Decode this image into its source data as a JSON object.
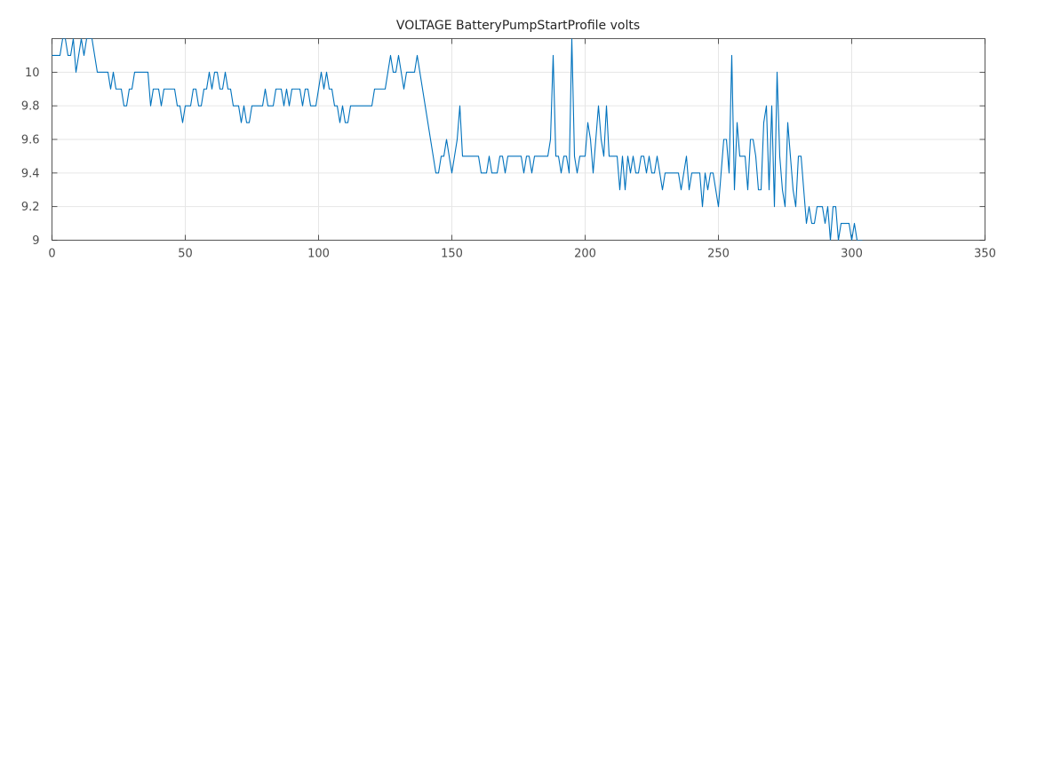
{
  "chart_data": {
    "type": "line",
    "title": "VOLTAGE BatteryPumpStartProfile volts",
    "xlabel": "",
    "ylabel": "",
    "xlim": [
      0,
      350
    ],
    "ylim": [
      9,
      10.2
    ],
    "x_ticks": [
      0,
      50,
      100,
      150,
      200,
      250,
      300,
      350
    ],
    "y_ticks": [
      9,
      9.2,
      9.4,
      9.6,
      9.8,
      10
    ],
    "x_tick_labels": [
      "0",
      "50",
      "100",
      "150",
      "200",
      "250",
      "300",
      "350"
    ],
    "y_tick_labels": [
      "9",
      "9.2",
      "9.4",
      "9.6",
      "9.8",
      "10"
    ],
    "grid": true,
    "series": [
      {
        "color": "#0072bd",
        "points": [
          [
            0,
            10.1
          ],
          [
            1,
            10.1
          ],
          [
            2,
            10.1
          ],
          [
            3,
            10.1
          ],
          [
            4,
            10.2
          ],
          [
            5,
            10.2
          ],
          [
            6,
            10.1
          ],
          [
            7,
            10.1
          ],
          [
            8,
            10.2
          ],
          [
            9,
            10.0
          ],
          [
            10,
            10.1
          ],
          [
            11,
            10.2
          ],
          [
            12,
            10.1
          ],
          [
            13,
            10.2
          ],
          [
            14,
            10.2
          ],
          [
            15,
            10.2
          ],
          [
            16,
            10.1
          ],
          [
            17,
            10.0
          ],
          [
            18,
            10.0
          ],
          [
            19,
            10.0
          ],
          [
            20,
            10.0
          ],
          [
            21,
            10.0
          ],
          [
            22,
            9.9
          ],
          [
            23,
            10.0
          ],
          [
            24,
            9.9
          ],
          [
            25,
            9.9
          ],
          [
            26,
            9.9
          ],
          [
            27,
            9.8
          ],
          [
            28,
            9.8
          ],
          [
            29,
            9.9
          ],
          [
            30,
            9.9
          ],
          [
            31,
            10.0
          ],
          [
            32,
            10.0
          ],
          [
            33,
            10.0
          ],
          [
            34,
            10.0
          ],
          [
            35,
            10.0
          ],
          [
            36,
            10.0
          ],
          [
            37,
            9.8
          ],
          [
            38,
            9.9
          ],
          [
            39,
            9.9
          ],
          [
            40,
            9.9
          ],
          [
            41,
            9.8
          ],
          [
            42,
            9.9
          ],
          [
            43,
            9.9
          ],
          [
            44,
            9.9
          ],
          [
            45,
            9.9
          ],
          [
            46,
            9.9
          ],
          [
            47,
            9.8
          ],
          [
            48,
            9.8
          ],
          [
            49,
            9.7
          ],
          [
            50,
            9.8
          ],
          [
            51,
            9.8
          ],
          [
            52,
            9.8
          ],
          [
            53,
            9.9
          ],
          [
            54,
            9.9
          ],
          [
            55,
            9.8
          ],
          [
            56,
            9.8
          ],
          [
            57,
            9.9
          ],
          [
            58,
            9.9
          ],
          [
            59,
            10.0
          ],
          [
            60,
            9.9
          ],
          [
            61,
            10.0
          ],
          [
            62,
            10.0
          ],
          [
            63,
            9.9
          ],
          [
            64,
            9.9
          ],
          [
            65,
            10.0
          ],
          [
            66,
            9.9
          ],
          [
            67,
            9.9
          ],
          [
            68,
            9.8
          ],
          [
            69,
            9.8
          ],
          [
            70,
            9.8
          ],
          [
            71,
            9.7
          ],
          [
            72,
            9.8
          ],
          [
            73,
            9.7
          ],
          [
            74,
            9.7
          ],
          [
            75,
            9.8
          ],
          [
            76,
            9.8
          ],
          [
            77,
            9.8
          ],
          [
            78,
            9.8
          ],
          [
            79,
            9.8
          ],
          [
            80,
            9.9
          ],
          [
            81,
            9.8
          ],
          [
            82,
            9.8
          ],
          [
            83,
            9.8
          ],
          [
            84,
            9.9
          ],
          [
            85,
            9.9
          ],
          [
            86,
            9.9
          ],
          [
            87,
            9.8
          ],
          [
            88,
            9.9
          ],
          [
            89,
            9.8
          ],
          [
            90,
            9.9
          ],
          [
            91,
            9.9
          ],
          [
            92,
            9.9
          ],
          [
            93,
            9.9
          ],
          [
            94,
            9.8
          ],
          [
            95,
            9.9
          ],
          [
            96,
            9.9
          ],
          [
            97,
            9.8
          ],
          [
            98,
            9.8
          ],
          [
            99,
            9.8
          ],
          [
            100,
            9.9
          ],
          [
            101,
            10.0
          ],
          [
            102,
            9.9
          ],
          [
            103,
            10.0
          ],
          [
            104,
            9.9
          ],
          [
            105,
            9.9
          ],
          [
            106,
            9.8
          ],
          [
            107,
            9.8
          ],
          [
            108,
            9.7
          ],
          [
            109,
            9.8
          ],
          [
            110,
            9.7
          ],
          [
            111,
            9.7
          ],
          [
            112,
            9.8
          ],
          [
            113,
            9.8
          ],
          [
            114,
            9.8
          ],
          [
            115,
            9.8
          ],
          [
            116,
            9.8
          ],
          [
            117,
            9.8
          ],
          [
            118,
            9.8
          ],
          [
            119,
            9.8
          ],
          [
            120,
            9.8
          ],
          [
            121,
            9.9
          ],
          [
            122,
            9.9
          ],
          [
            123,
            9.9
          ],
          [
            124,
            9.9
          ],
          [
            125,
            9.9
          ],
          [
            126,
            10.0
          ],
          [
            127,
            10.1
          ],
          [
            128,
            10.0
          ],
          [
            129,
            10.0
          ],
          [
            130,
            10.1
          ],
          [
            131,
            10.0
          ],
          [
            132,
            9.9
          ],
          [
            133,
            10.0
          ],
          [
            134,
            10.0
          ],
          [
            135,
            10.0
          ],
          [
            136,
            10.0
          ],
          [
            137,
            10.1
          ],
          [
            138,
            10.0
          ],
          [
            144,
            9.4
          ],
          [
            145,
            9.4
          ],
          [
            146,
            9.5
          ],
          [
            147,
            9.5
          ],
          [
            148,
            9.6
          ],
          [
            149,
            9.5
          ],
          [
            150,
            9.4
          ],
          [
            151,
            9.5
          ],
          [
            152,
            9.6
          ],
          [
            153,
            9.8
          ],
          [
            154,
            9.5
          ],
          [
            155,
            9.5
          ],
          [
            156,
            9.5
          ],
          [
            157,
            9.5
          ],
          [
            158,
            9.5
          ],
          [
            159,
            9.5
          ],
          [
            160,
            9.5
          ],
          [
            161,
            9.4
          ],
          [
            162,
            9.4
          ],
          [
            163,
            9.4
          ],
          [
            164,
            9.5
          ],
          [
            165,
            9.4
          ],
          [
            166,
            9.4
          ],
          [
            167,
            9.4
          ],
          [
            168,
            9.5
          ],
          [
            169,
            9.5
          ],
          [
            170,
            9.4
          ],
          [
            171,
            9.5
          ],
          [
            172,
            9.5
          ],
          [
            173,
            9.5
          ],
          [
            174,
            9.5
          ],
          [
            175,
            9.5
          ],
          [
            176,
            9.5
          ],
          [
            177,
            9.4
          ],
          [
            178,
            9.5
          ],
          [
            179,
            9.5
          ],
          [
            180,
            9.4
          ],
          [
            181,
            9.5
          ],
          [
            182,
            9.5
          ],
          [
            183,
            9.5
          ],
          [
            184,
            9.5
          ],
          [
            185,
            9.5
          ],
          [
            186,
            9.5
          ],
          [
            187,
            9.6
          ],
          [
            188,
            10.1
          ],
          [
            189,
            9.5
          ],
          [
            190,
            9.5
          ],
          [
            191,
            9.4
          ],
          [
            192,
            9.5
          ],
          [
            193,
            9.5
          ],
          [
            194,
            9.4
          ],
          [
            195,
            10.2
          ],
          [
            196,
            9.5
          ],
          [
            197,
            9.4
          ],
          [
            198,
            9.5
          ],
          [
            199,
            9.5
          ],
          [
            200,
            9.5
          ],
          [
            201,
            9.7
          ],
          [
            202,
            9.6
          ],
          [
            203,
            9.4
          ],
          [
            204,
            9.6
          ],
          [
            205,
            9.8
          ],
          [
            206,
            9.6
          ],
          [
            207,
            9.5
          ],
          [
            208,
            9.8
          ],
          [
            209,
            9.5
          ],
          [
            210,
            9.5
          ],
          [
            211,
            9.5
          ],
          [
            212,
            9.5
          ],
          [
            213,
            9.3
          ],
          [
            214,
            9.5
          ],
          [
            215,
            9.3
          ],
          [
            216,
            9.5
          ],
          [
            217,
            9.4
          ],
          [
            218,
            9.5
          ],
          [
            219,
            9.4
          ],
          [
            220,
            9.4
          ],
          [
            221,
            9.5
          ],
          [
            222,
            9.5
          ],
          [
            223,
            9.4
          ],
          [
            224,
            9.5
          ],
          [
            225,
            9.4
          ],
          [
            226,
            9.4
          ],
          [
            227,
            9.5
          ],
          [
            228,
            9.4
          ],
          [
            229,
            9.3
          ],
          [
            230,
            9.4
          ],
          [
            231,
            9.4
          ],
          [
            232,
            9.4
          ],
          [
            233,
            9.4
          ],
          [
            234,
            9.4
          ],
          [
            235,
            9.4
          ],
          [
            236,
            9.3
          ],
          [
            237,
            9.4
          ],
          [
            238,
            9.5
          ],
          [
            239,
            9.3
          ],
          [
            240,
            9.4
          ],
          [
            241,
            9.4
          ],
          [
            242,
            9.4
          ],
          [
            243,
            9.4
          ],
          [
            244,
            9.2
          ],
          [
            245,
            9.4
          ],
          [
            246,
            9.3
          ],
          [
            247,
            9.4
          ],
          [
            248,
            9.4
          ],
          [
            249,
            9.3
          ],
          [
            250,
            9.2
          ],
          [
            251,
            9.4
          ],
          [
            252,
            9.6
          ],
          [
            253,
            9.6
          ],
          [
            254,
            9.4
          ],
          [
            255,
            10.1
          ],
          [
            256,
            9.3
          ],
          [
            257,
            9.7
          ],
          [
            258,
            9.5
          ],
          [
            259,
            9.5
          ],
          [
            260,
            9.5
          ],
          [
            261,
            9.3
          ],
          [
            262,
            9.6
          ],
          [
            263,
            9.6
          ],
          [
            264,
            9.5
          ],
          [
            265,
            9.3
          ],
          [
            266,
            9.3
          ],
          [
            267,
            9.7
          ],
          [
            268,
            9.8
          ],
          [
            269,
            9.3
          ],
          [
            270,
            9.8
          ],
          [
            271,
            9.2
          ],
          [
            272,
            10.0
          ],
          [
            273,
            9.5
          ],
          [
            274,
            9.3
          ],
          [
            275,
            9.2
          ],
          [
            276,
            9.7
          ],
          [
            277,
            9.5
          ],
          [
            278,
            9.3
          ],
          [
            279,
            9.2
          ],
          [
            280,
            9.5
          ],
          [
            281,
            9.5
          ],
          [
            282,
            9.3
          ],
          [
            283,
            9.1
          ],
          [
            284,
            9.2
          ],
          [
            285,
            9.1
          ],
          [
            286,
            9.1
          ],
          [
            287,
            9.2
          ],
          [
            288,
            9.2
          ],
          [
            289,
            9.2
          ],
          [
            290,
            9.1
          ],
          [
            291,
            9.2
          ],
          [
            292,
            9.0
          ],
          [
            293,
            9.2
          ],
          [
            294,
            9.2
          ],
          [
            295,
            9.0
          ],
          [
            296,
            9.1
          ],
          [
            297,
            9.1
          ],
          [
            298,
            9.1
          ],
          [
            299,
            9.1
          ],
          [
            300,
            9.0
          ],
          [
            301,
            9.1
          ],
          [
            302,
            9.0
          ],
          [
            303,
            9.0
          ],
          [
            304,
            9.0
          ]
        ]
      }
    ]
  }
}
